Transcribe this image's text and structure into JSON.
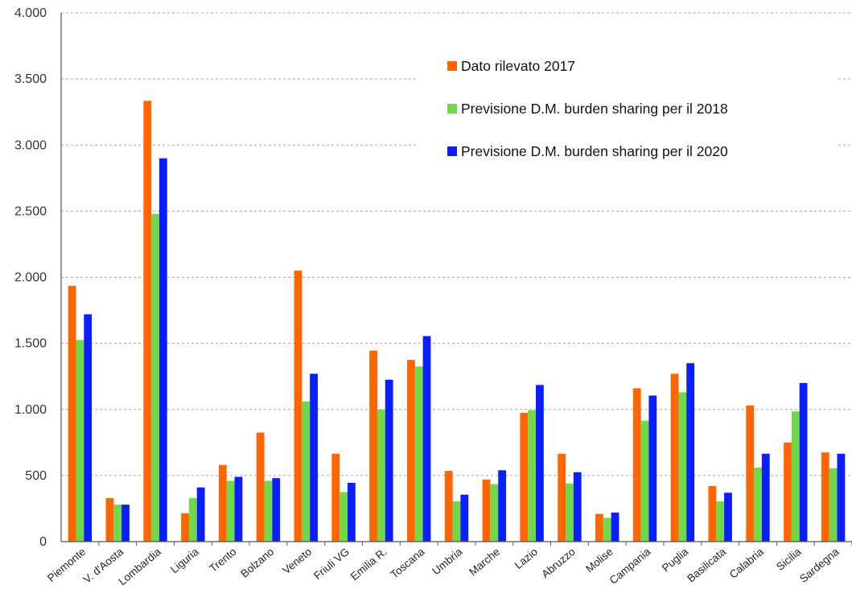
{
  "chart_data": {
    "type": "bar",
    "title": "",
    "xlabel": "",
    "ylabel": "",
    "ylim": [
      0,
      4000
    ],
    "yticks": [
      0,
      500,
      1000,
      1500,
      2000,
      2500,
      3000,
      3500,
      4000
    ],
    "ytick_labels": [
      "0",
      "500",
      "1.000",
      "1.500",
      "2.000",
      "2.500",
      "3.000",
      "3.500",
      "4.000"
    ],
    "grid": true,
    "legend_position": "top-right",
    "categories": [
      "Piemonte",
      "V. d'Aosta",
      "Lombardia",
      "Liguria",
      "Trento",
      "Bolzano",
      "Veneto",
      "Friuli VG",
      "Emilia R.",
      "Toscana",
      "Umbria",
      "Marche",
      "Lazio",
      "Abruzzo",
      "Molise",
      "Campania",
      "Puglia",
      "Basilicata",
      "Calabria",
      "Sicilia",
      "Sardegna"
    ],
    "series": [
      {
        "name": "Dato rilevato 2017",
        "color": "#ff6600",
        "values": [
          1935,
          330,
          3335,
          215,
          580,
          825,
          2050,
          665,
          1445,
          1375,
          535,
          470,
          975,
          665,
          210,
          1160,
          1270,
          420,
          1030,
          750,
          675
        ]
      },
      {
        "name": "Previsione D.M. burden sharing per il 2018",
        "color": "#70d94a",
        "values": [
          1525,
          280,
          2480,
          330,
          460,
          460,
          1060,
          375,
          1000,
          1325,
          305,
          435,
          995,
          440,
          180,
          915,
          1130,
          305,
          560,
          985,
          555
        ]
      },
      {
        "name": "Previsione D.M. burden sharing per il 2020",
        "color": "#0a1eff",
        "values": [
          1720,
          280,
          2900,
          410,
          490,
          480,
          1270,
          445,
          1225,
          1555,
          355,
          540,
          1185,
          525,
          220,
          1105,
          1350,
          370,
          665,
          1200,
          665
        ]
      }
    ]
  }
}
